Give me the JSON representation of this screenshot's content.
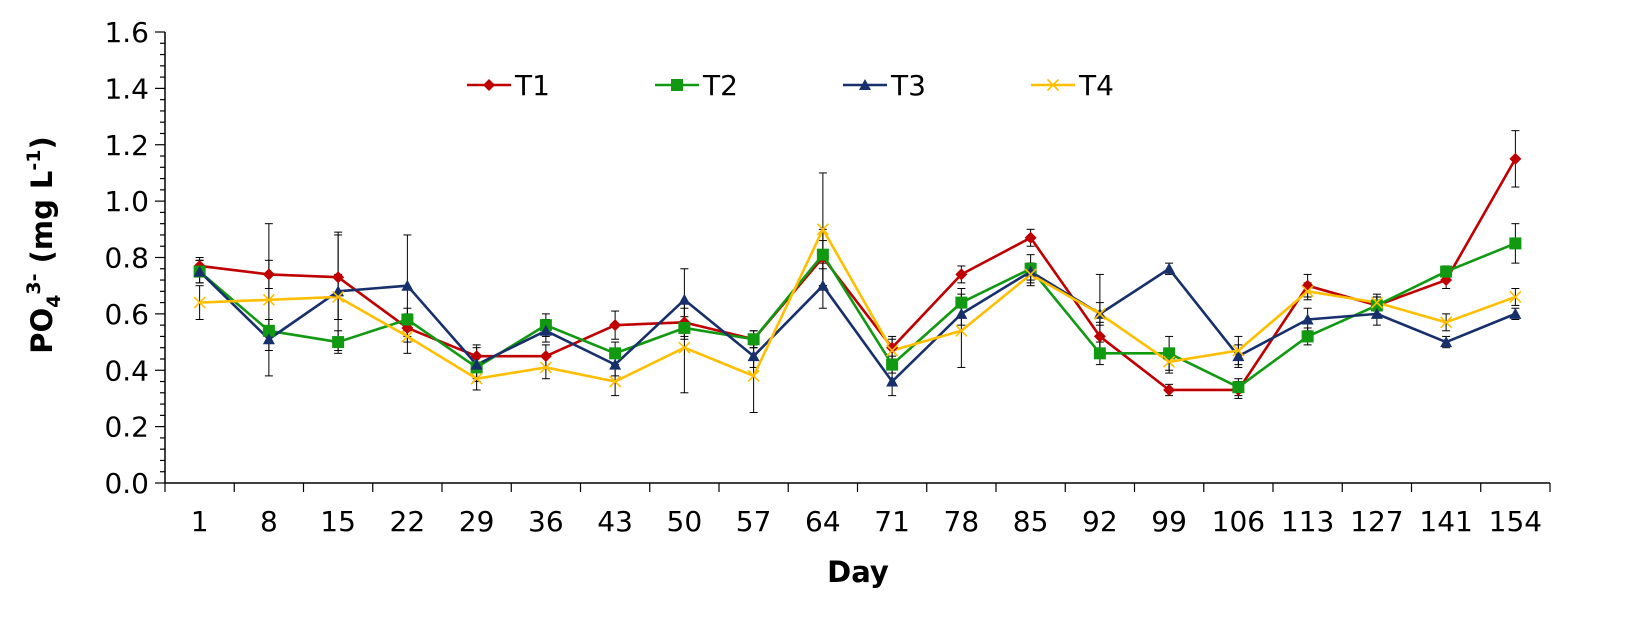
{
  "chart_data": {
    "type": "line",
    "xlabel": "Day",
    "ylabel": {
      "base": "PO",
      "sub": "4",
      "sup": "3-",
      "unit_prefix": " (mg L",
      "unit_sup": "-1",
      "unit_suffix": ")"
    },
    "categories": [
      "1",
      "8",
      "15",
      "22",
      "29",
      "36",
      "43",
      "50",
      "57",
      "64",
      "71",
      "78",
      "85",
      "92",
      "99",
      "106",
      "113",
      "127",
      "141",
      "154"
    ],
    "ylim": [
      0,
      1.6
    ],
    "yticks": [
      "0.0",
      "0.2",
      "0.4",
      "0.6",
      "0.8",
      "1.0",
      "1.2",
      "1.4",
      "1.6"
    ],
    "grid": false,
    "legend_position": "top",
    "series": [
      {
        "name": "T1",
        "color": "#c00000",
        "marker": "diamond",
        "values": [
          0.77,
          0.74,
          0.73,
          0.55,
          0.45,
          0.45,
          0.56,
          0.57,
          0.51,
          0.8,
          0.48,
          0.74,
          0.87,
          0.52,
          0.33,
          0.33,
          0.7,
          0.63,
          0.72,
          1.15
        ],
        "errors": [
          0.03,
          0.05,
          0.15,
          0.05,
          0.04,
          0.04,
          0.05,
          0.05,
          0.03,
          0.1,
          0.04,
          0.03,
          0.03,
          0.05,
          0.02,
          0.03,
          0.04,
          0.03,
          0.03,
          0.1
        ]
      },
      {
        "name": "T2",
        "color": "#119911",
        "marker": "square",
        "values": [
          0.75,
          0.54,
          0.5,
          0.58,
          0.41,
          0.56,
          0.46,
          0.55,
          0.51,
          0.81,
          0.42,
          0.64,
          0.76,
          0.46,
          0.46,
          0.34,
          0.52,
          0.63,
          0.75,
          0.85
        ],
        "errors": [
          0.04,
          0.04,
          0.04,
          0.04,
          0.04,
          0.04,
          0.04,
          0.04,
          0.03,
          0.05,
          0.03,
          0.05,
          0.05,
          0.04,
          0.06,
          0.03,
          0.03,
          0.03,
          0.02,
          0.07
        ]
      },
      {
        "name": "T3",
        "color": "#17306b",
        "marker": "triangle",
        "values": [
          0.75,
          0.51,
          0.68,
          0.7,
          0.42,
          0.54,
          0.42,
          0.65,
          0.45,
          0.7,
          0.36,
          0.6,
          0.75,
          0.6,
          0.76,
          0.45,
          0.58,
          0.6,
          0.5,
          0.6
        ],
        "errors": [
          0.04,
          0.04,
          0.21,
          0.18,
          0.06,
          0.04,
          0.04,
          0.11,
          0.04,
          0.08,
          0.05,
          0.04,
          0.03,
          0.14,
          0.02,
          0.04,
          0.04,
          0.04,
          0.02,
          0.02
        ]
      },
      {
        "name": "T4",
        "color": "#ffbf00",
        "marker": "x",
        "values": [
          0.64,
          0.65,
          0.66,
          0.52,
          0.37,
          0.41,
          0.36,
          0.48,
          0.38,
          0.9,
          0.47,
          0.54,
          0.74,
          0.6,
          0.43,
          0.47,
          0.68,
          0.64,
          0.57,
          0.66
        ],
        "errors": [
          0.06,
          0.27,
          0.08,
          0.06,
          0.04,
          0.04,
          0.05,
          0.16,
          0.13,
          0.2,
          0.04,
          0.13,
          0.04,
          0.04,
          0.04,
          0.05,
          0.03,
          0.03,
          0.03,
          0.03
        ]
      }
    ]
  }
}
